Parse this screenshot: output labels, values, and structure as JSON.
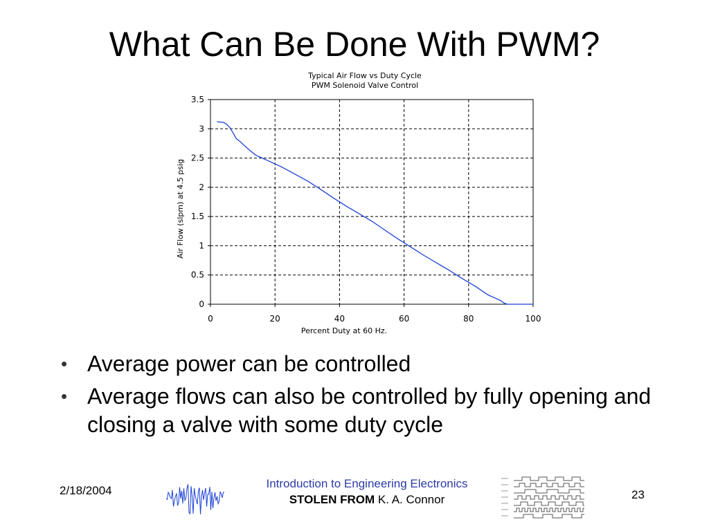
{
  "slide": {
    "title": "What Can Be Done With PWM?",
    "bullets": [
      "Average power can be controlled",
      "Average flows can also be controlled by fully opening and closing a valve with some duty cycle"
    ],
    "footer": {
      "date": "2/18/2004",
      "course": "Introduction to Engineering Electronics",
      "credit_label": "STOLEN FROM",
      "credit_name": " K. A. Connor",
      "page": "23"
    }
  },
  "chart_data": {
    "type": "line",
    "title": "Typical Air Flow vs Duty Cycle",
    "subtitle": "PWM Solenoid Valve Control",
    "xlabel": "Percent Duty at 60 Hz.",
    "ylabel": "Air Flow (slpm) at 4.5 psig",
    "xlim": [
      0,
      100
    ],
    "ylim": [
      0,
      3.5
    ],
    "xticks": [
      "0",
      "20",
      "40",
      "60",
      "80",
      "100"
    ],
    "yticks": [
      "0",
      "0.5",
      "1",
      "1.5",
      "2",
      "2.5",
      "3",
      "3.5"
    ],
    "grid": true,
    "legend": "none",
    "colors": {
      "line": "#1a3fd6",
      "grid": "#000000"
    },
    "series": [
      {
        "name": "",
        "x": [
          2,
          4,
          5,
          6,
          7,
          8,
          9,
          10,
          12,
          14,
          18,
          22,
          26,
          30,
          34,
          38,
          42,
          46,
          50,
          54,
          58,
          62,
          66,
          70,
          74,
          78,
          82,
          86,
          88,
          90,
          91,
          92,
          100
        ],
        "y": [
          3.12,
          3.11,
          3.08,
          3.02,
          2.93,
          2.83,
          2.79,
          2.74,
          2.64,
          2.55,
          2.45,
          2.35,
          2.23,
          2.11,
          1.97,
          1.82,
          1.68,
          1.55,
          1.42,
          1.27,
          1.12,
          0.98,
          0.84,
          0.71,
          0.58,
          0.44,
          0.31,
          0.16,
          0.11,
          0.06,
          0.02,
          0.0,
          0.0
        ]
      }
    ]
  }
}
